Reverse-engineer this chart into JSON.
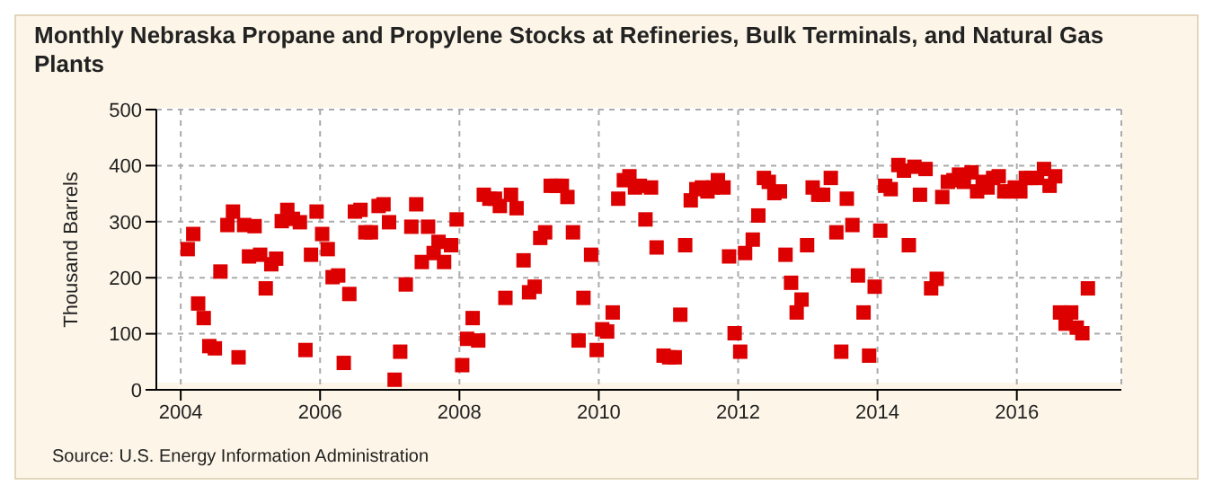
{
  "chart_data": {
    "type": "scatter",
    "title": "Monthly Nebraska Propane and Propylene Stocks at Refineries, Bulk Terminals, and Natural Gas Plants",
    "ylabel": "Thousand Barrels",
    "annotations": [
      "Source: U.S. Energy Information Administration"
    ],
    "x": [
      2004.1,
      2004.18,
      2004.25,
      2004.33,
      2004.41,
      2004.49,
      2004.57,
      2004.67,
      2004.75,
      2004.83,
      2004.91,
      2004.98,
      2005.06,
      2005.14,
      2005.22,
      2005.3,
      2005.37,
      2005.45,
      2005.53,
      2005.61,
      2005.71,
      2005.79,
      2005.87,
      2005.95,
      2006.03,
      2006.11,
      2006.18,
      2006.26,
      2006.34,
      2006.42,
      2006.5,
      2006.58,
      2006.65,
      2006.73,
      2006.84,
      2006.91,
      2006.99,
      2007.07,
      2007.15,
      2007.23,
      2007.31,
      2007.38,
      2007.46,
      2007.55,
      2007.63,
      2007.7,
      2007.78,
      2007.88,
      2007.96,
      2008.04,
      2008.11,
      2008.19,
      2008.27,
      2008.35,
      2008.43,
      2008.51,
      2008.58,
      2008.66,
      2008.74,
      2008.82,
      2008.92,
      2009.0,
      2009.08,
      2009.16,
      2009.23,
      2009.31,
      2009.39,
      2009.47,
      2009.55,
      2009.63,
      2009.71,
      2009.78,
      2009.89,
      2009.97,
      2010.05,
      2010.12,
      2010.2,
      2010.28,
      2010.36,
      2010.44,
      2010.52,
      2010.59,
      2010.67,
      2010.75,
      2010.83,
      2010.93,
      2011.01,
      2011.09,
      2011.17,
      2011.24,
      2011.32,
      2011.4,
      2011.48,
      2011.56,
      2011.64,
      2011.71,
      2011.79,
      2011.87,
      2011.95,
      2012.03,
      2012.1,
      2012.21,
      2012.29,
      2012.37,
      2012.44,
      2012.52,
      2012.6,
      2012.68,
      2012.76,
      2012.84,
      2012.91,
      2012.99,
      2013.07,
      2013.15,
      2013.22,
      2013.33,
      2013.41,
      2013.48,
      2013.56,
      2013.64,
      2013.72,
      2013.8,
      2013.88,
      2013.96,
      2014.04,
      2014.11,
      2014.19,
      2014.3,
      2014.38,
      2014.45,
      2014.53,
      2014.61,
      2014.69,
      2014.77,
      2014.85,
      2014.93,
      2015.01,
      2015.09,
      2015.17,
      2015.24,
      2015.35,
      2015.43,
      2015.51,
      2015.58,
      2015.66,
      2015.74,
      2015.82,
      2015.9,
      2015.97,
      2016.05,
      2016.13,
      2016.21,
      2016.29,
      2016.39,
      2016.47,
      2016.55,
      2016.62,
      2016.7,
      2016.78,
      2016.86,
      2016.94,
      2017.02
    ],
    "series": [
      {
        "color": "#dd0000",
        "values": [
          251,
          278,
          154,
          128,
          78,
          74,
          211,
          294,
          318,
          58,
          294,
          238,
          292,
          241,
          181,
          224,
          234,
          301,
          321,
          305,
          299,
          71,
          241,
          318,
          278,
          251,
          201,
          204,
          48,
          171,
          318,
          321,
          281,
          281,
          328,
          331,
          299,
          18,
          68,
          188,
          291,
          331,
          228,
          291,
          244,
          264,
          228,
          258,
          304,
          44,
          91,
          128,
          88,
          348,
          341,
          341,
          328,
          164,
          348,
          324,
          231,
          174,
          184,
          271,
          281,
          364,
          364,
          364,
          344,
          281,
          88,
          164,
          241,
          71,
          108,
          104,
          138,
          341,
          374,
          381,
          361,
          364,
          304,
          361,
          254,
          61,
          58,
          58,
          134,
          258,
          338,
          358,
          361,
          354,
          361,
          374,
          361,
          238,
          101,
          68,
          244,
          268,
          311,
          378,
          371,
          351,
          354,
          241,
          191,
          138,
          161,
          258,
          361,
          348,
          348,
          378,
          281,
          68,
          341,
          294,
          204,
          138,
          61,
          184,
          284,
          364,
          358,
          401,
          391,
          258,
          398,
          348,
          394,
          181,
          198,
          344,
          371,
          374,
          384,
          371,
          388,
          354,
          371,
          361,
          378,
          381,
          354,
          354,
          361,
          354,
          378,
          378,
          378,
          394,
          364,
          381,
          138,
          118,
          138,
          111,
          101,
          181
        ]
      }
    ],
    "xlim": [
      2003.65,
      2017.5
    ],
    "xticks": [
      2004,
      2006,
      2008,
      2010,
      2012,
      2014,
      2016
    ],
    "ylim": [
      0,
      500
    ],
    "yticks": [
      0,
      100,
      200,
      300,
      400,
      500
    ],
    "grid": true,
    "marker": "square"
  }
}
